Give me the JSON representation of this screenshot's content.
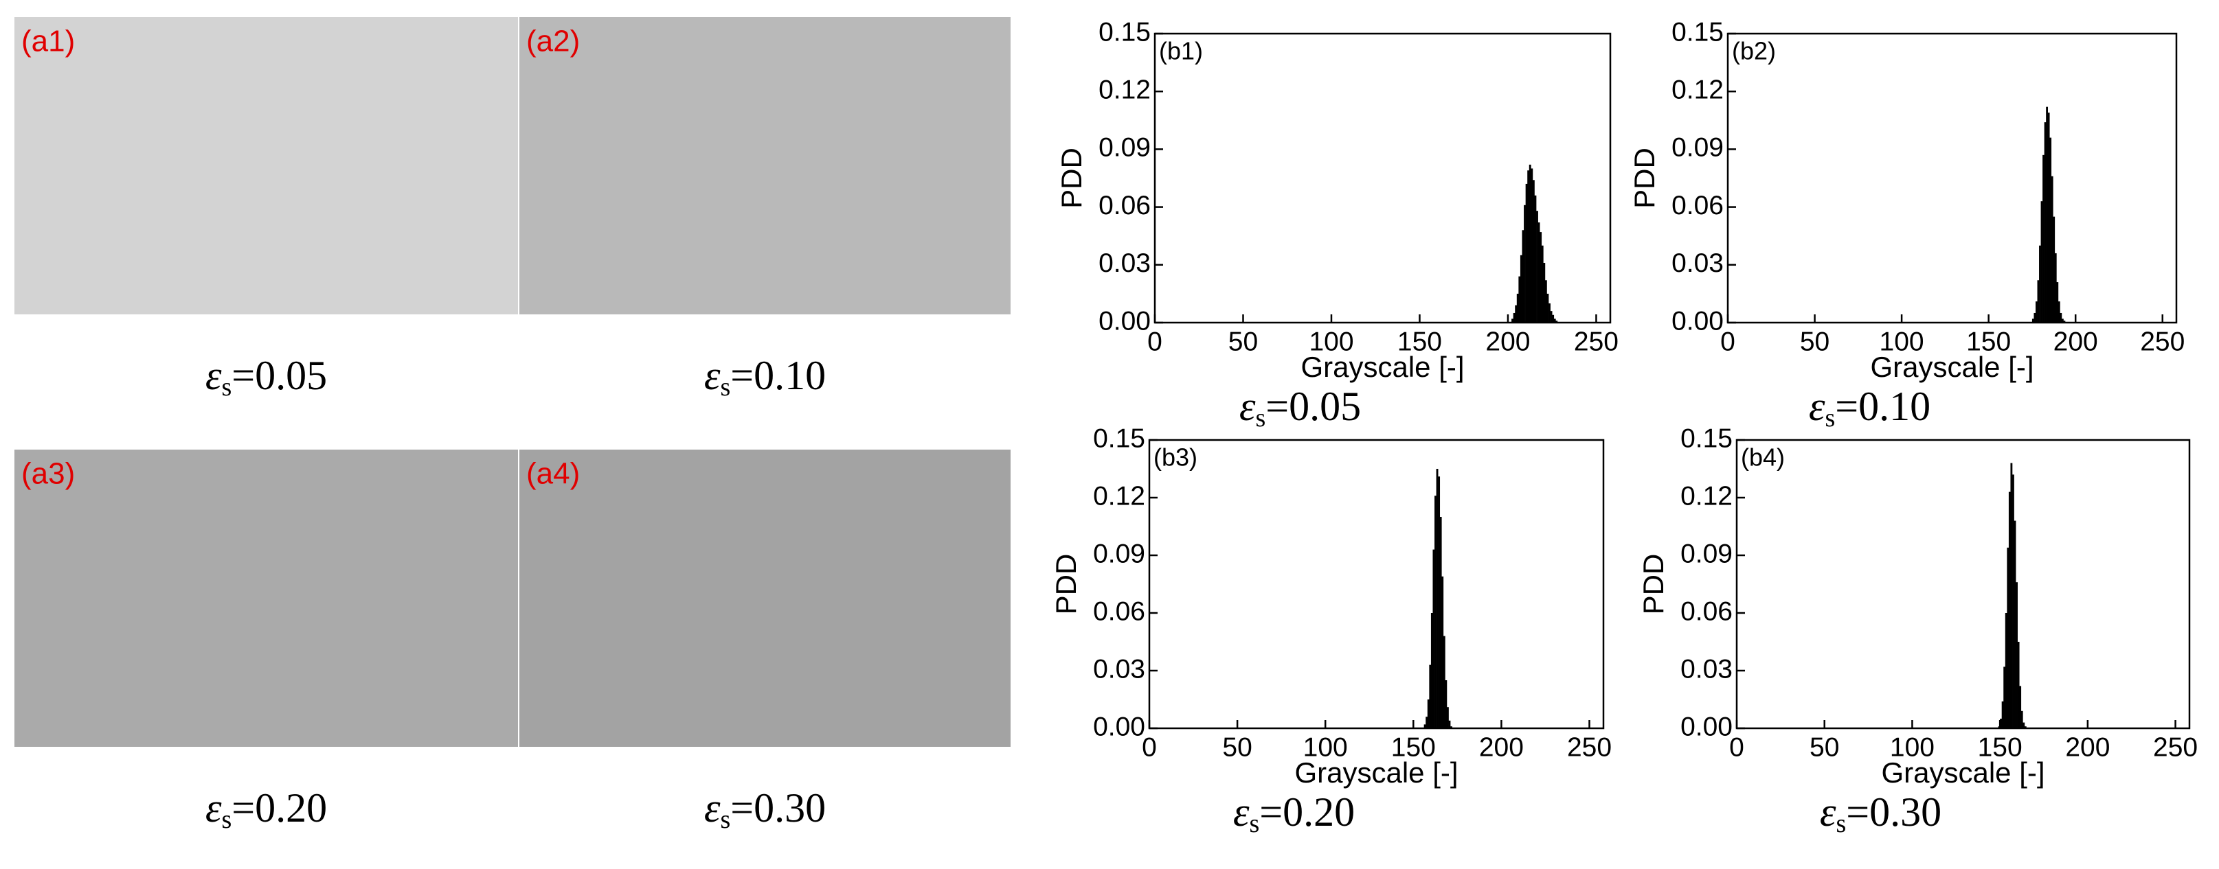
{
  "panels": [
    {
      "label": "(a1)",
      "symbol": "ε",
      "subscript": "s",
      "text": "=0.05"
    },
    {
      "label": "(a2)",
      "symbol": "ε",
      "subscript": "s",
      "text": "=0.10"
    },
    {
      "label": "(a3)",
      "symbol": "ε",
      "subscript": "s",
      "text": "=0.20"
    },
    {
      "label": "(a4)",
      "symbol": "ε",
      "subscript": "s",
      "text": "=0.30"
    }
  ],
  "chart_data": [
    {
      "type": "histogram",
      "panel_label": "(b1)",
      "x_label": "Grayscale [-]",
      "y_label": "PDD",
      "caption_symbol": "ε",
      "caption_subscript": "s",
      "caption_text": "=0.05",
      "color": "#000000",
      "xlim": [
        0,
        258
      ],
      "xticks": [
        0,
        50,
        100,
        150,
        200,
        250
      ],
      "ylim": [
        0,
        0.15
      ],
      "yticks": [
        {
          "value": 0,
          "label": "0.00"
        },
        {
          "value": 0.03,
          "label": "0.03"
        },
        {
          "value": 0.06,
          "label": "0.06"
        },
        {
          "value": 0.09,
          "label": "0.09"
        },
        {
          "value": 0.12,
          "label": "0.12"
        },
        {
          "value": 0.15,
          "label": "0.15"
        }
      ],
      "bins": [
        202,
        203,
        204,
        205,
        206,
        207,
        208,
        209,
        210,
        211,
        212,
        213,
        214,
        215,
        216,
        217,
        218,
        219,
        220,
        221,
        222,
        223,
        224,
        225,
        226,
        227,
        228
      ],
      "values": [
        0.002,
        0.005,
        0.009,
        0.015,
        0.024,
        0.035,
        0.048,
        0.061,
        0.072,
        0.079,
        0.082,
        0.08,
        0.074,
        0.066,
        0.058,
        0.052,
        0.047,
        0.04,
        0.031,
        0.022,
        0.015,
        0.01,
        0.006,
        0.004,
        0.002,
        0.001
      ]
    },
    {
      "type": "histogram",
      "panel_label": "(b2)",
      "x_label": "Grayscale [-]",
      "y_label": "PDD",
      "caption_symbol": "ε",
      "caption_subscript": "s",
      "caption_text": "=0.10",
      "color": "#000000",
      "xlim": [
        0,
        258
      ],
      "xticks": [
        0,
        50,
        100,
        150,
        200,
        250
      ],
      "ylim": [
        0,
        0.15
      ],
      "yticks": [
        {
          "value": 0,
          "label": "0.00"
        },
        {
          "value": 0.03,
          "label": "0.03"
        },
        {
          "value": 0.06,
          "label": "0.06"
        },
        {
          "value": 0.09,
          "label": "0.09"
        },
        {
          "value": 0.12,
          "label": "0.12"
        },
        {
          "value": 0.15,
          "label": "0.15"
        }
      ],
      "bins": [
        175,
        176,
        177,
        178,
        179,
        180,
        181,
        182,
        183,
        184,
        185,
        186,
        187,
        188,
        189,
        190,
        191,
        192,
        193,
        194
      ],
      "values": [
        0.002,
        0.005,
        0.011,
        0.022,
        0.04,
        0.063,
        0.087,
        0.104,
        0.112,
        0.109,
        0.096,
        0.076,
        0.055,
        0.036,
        0.021,
        0.011,
        0.005,
        0.002,
        0.001
      ]
    },
    {
      "type": "histogram",
      "panel_label": "(b3)",
      "x_label": "Grayscale [-]",
      "y_label": "PDD",
      "caption_symbol": "ε",
      "caption_subscript": "s",
      "caption_text": "=0.20",
      "color": "#000000",
      "xlim": [
        0,
        258
      ],
      "xticks": [
        0,
        50,
        100,
        150,
        200,
        250
      ],
      "ylim": [
        0,
        0.15
      ],
      "yticks": [
        {
          "value": 0,
          "label": "0.00"
        },
        {
          "value": 0.03,
          "label": "0.03"
        },
        {
          "value": 0.06,
          "label": "0.06"
        },
        {
          "value": 0.09,
          "label": "0.09"
        },
        {
          "value": 0.12,
          "label": "0.12"
        },
        {
          "value": 0.15,
          "label": "0.15"
        }
      ],
      "bins": [
        156,
        157,
        158,
        159,
        160,
        161,
        162,
        163,
        164,
        165,
        166,
        167,
        168,
        169,
        170,
        171,
        172
      ],
      "values": [
        0.002,
        0.006,
        0.015,
        0.033,
        0.06,
        0.093,
        0.121,
        0.135,
        0.131,
        0.11,
        0.079,
        0.048,
        0.025,
        0.011,
        0.004,
        0.001
      ]
    },
    {
      "type": "histogram",
      "panel_label": "(b4)",
      "x_label": "Grayscale [-]",
      "y_label": "PDD",
      "caption_symbol": "ε",
      "caption_subscript": "s",
      "caption_text": "=0.30",
      "color": "#000000",
      "xlim": [
        0,
        258
      ],
      "xticks": [
        0,
        50,
        100,
        150,
        200,
        250
      ],
      "ylim": [
        0,
        0.15
      ],
      "yticks": [
        {
          "value": 0,
          "label": "0.00"
        },
        {
          "value": 0.03,
          "label": "0.03"
        },
        {
          "value": 0.06,
          "label": "0.06"
        },
        {
          "value": 0.09,
          "label": "0.09"
        },
        {
          "value": 0.12,
          "label": "0.12"
        },
        {
          "value": 0.15,
          "label": "0.15"
        }
      ],
      "bins": [
        149,
        150,
        151,
        152,
        153,
        154,
        155,
        156,
        157,
        158,
        159,
        160,
        161,
        162,
        163,
        164,
        165
      ],
      "values": [
        0.001,
        0.005,
        0.014,
        0.032,
        0.06,
        0.094,
        0.123,
        0.138,
        0.132,
        0.108,
        0.076,
        0.045,
        0.022,
        0.009,
        0.003,
        0.001
      ]
    }
  ]
}
